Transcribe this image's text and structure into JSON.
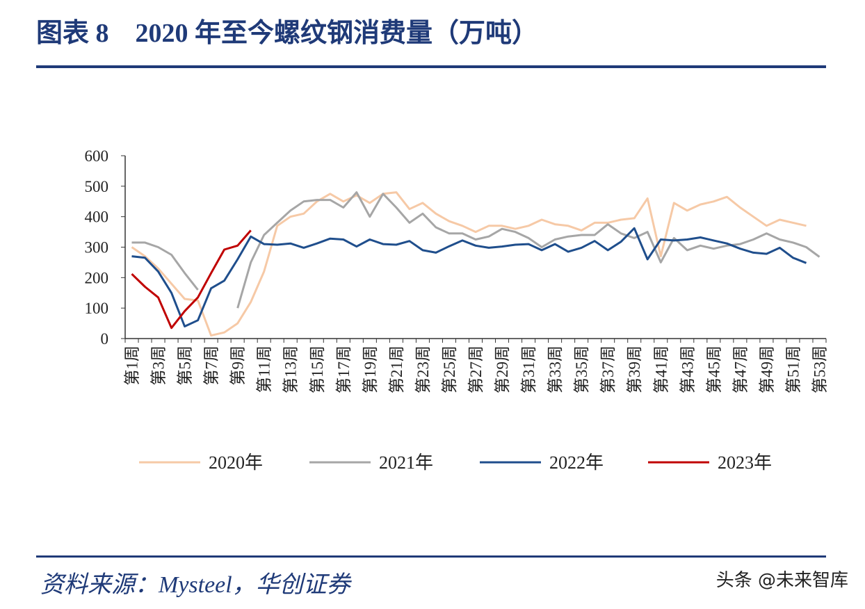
{
  "chart_data": {
    "type": "line",
    "title": "图表 8　2020 年至今螺纹钢消费量（万吨）",
    "categories": [
      "第1周",
      null,
      "第3周",
      null,
      "第5周",
      null,
      "第7周",
      null,
      "第9周",
      null,
      "第11周",
      null,
      "第13周",
      null,
      "第15周",
      null,
      "第17周",
      null,
      "第19周",
      null,
      "第21周",
      null,
      "第23周",
      null,
      "第25周",
      null,
      "第27周",
      null,
      "第29周",
      null,
      "第31周",
      null,
      "第33周",
      null,
      "第35周",
      null,
      "第37周",
      null,
      "第39周",
      null,
      "第41周",
      null,
      "第43周",
      null,
      "第45周",
      null,
      "第47周",
      null,
      "第49周",
      null,
      "第51周",
      null,
      "第53周"
    ],
    "series": [
      {
        "name": "2020年",
        "color": "#f6c9a6",
        "values": [
          300,
          270,
          230,
          180,
          130,
          125,
          10,
          20,
          50,
          120,
          220,
          370,
          400,
          410,
          450,
          475,
          450,
          470,
          445,
          475,
          480,
          425,
          445,
          410,
          385,
          370,
          350,
          370,
          370,
          360,
          370,
          390,
          375,
          370,
          355,
          380,
          380,
          390,
          395,
          460,
          270,
          445,
          420,
          440,
          450,
          465,
          430,
          400,
          370,
          390,
          380,
          370,
          null
        ]
      },
      {
        "name": "2021年",
        "color": "#a6a6a6",
        "values": [
          315,
          315,
          300,
          275,
          215,
          160,
          null,
          null,
          100,
          250,
          340,
          380,
          420,
          450,
          455,
          455,
          430,
          480,
          400,
          475,
          430,
          380,
          410,
          365,
          345,
          345,
          325,
          335,
          360,
          350,
          330,
          300,
          325,
          335,
          340,
          340,
          375,
          345,
          330,
          350,
          250,
          330,
          290,
          305,
          295,
          305,
          310,
          325,
          345,
          325,
          315,
          300,
          268
        ]
      },
      {
        "name": "2022年",
        "color": "#1f4e8c",
        "values": [
          270,
          265,
          220,
          150,
          40,
          60,
          165,
          190,
          260,
          335,
          310,
          308,
          312,
          298,
          312,
          328,
          325,
          302,
          325,
          310,
          308,
          320,
          290,
          282,
          303,
          322,
          305,
          298,
          302,
          308,
          310,
          290,
          310,
          285,
          298,
          320,
          290,
          318,
          362,
          260,
          325,
          322,
          325,
          332,
          322,
          312,
          295,
          282,
          278,
          298,
          265,
          248,
          null
        ]
      },
      {
        "name": "2023年",
        "color": "#c00000",
        "values": [
          212,
          170,
          135,
          35,
          90,
          135,
          215,
          292,
          305,
          355,
          null,
          null,
          null,
          null,
          null,
          null,
          null,
          null,
          null,
          null,
          null,
          null,
          null,
          null,
          null,
          null,
          null,
          null,
          null,
          null,
          null,
          null,
          null,
          null,
          null,
          null,
          null,
          null,
          null,
          null,
          null,
          null,
          null,
          null,
          null,
          null,
          null,
          null,
          null,
          null,
          null,
          null,
          null
        ]
      }
    ],
    "ylim": [
      0,
      600
    ],
    "yticks": [
      0,
      100,
      200,
      300,
      400,
      500,
      600
    ],
    "legend": "bottom"
  },
  "footer": {
    "source": "资料来源：Mysteel，华创证券",
    "watermark": "头条 @未来智库"
  }
}
